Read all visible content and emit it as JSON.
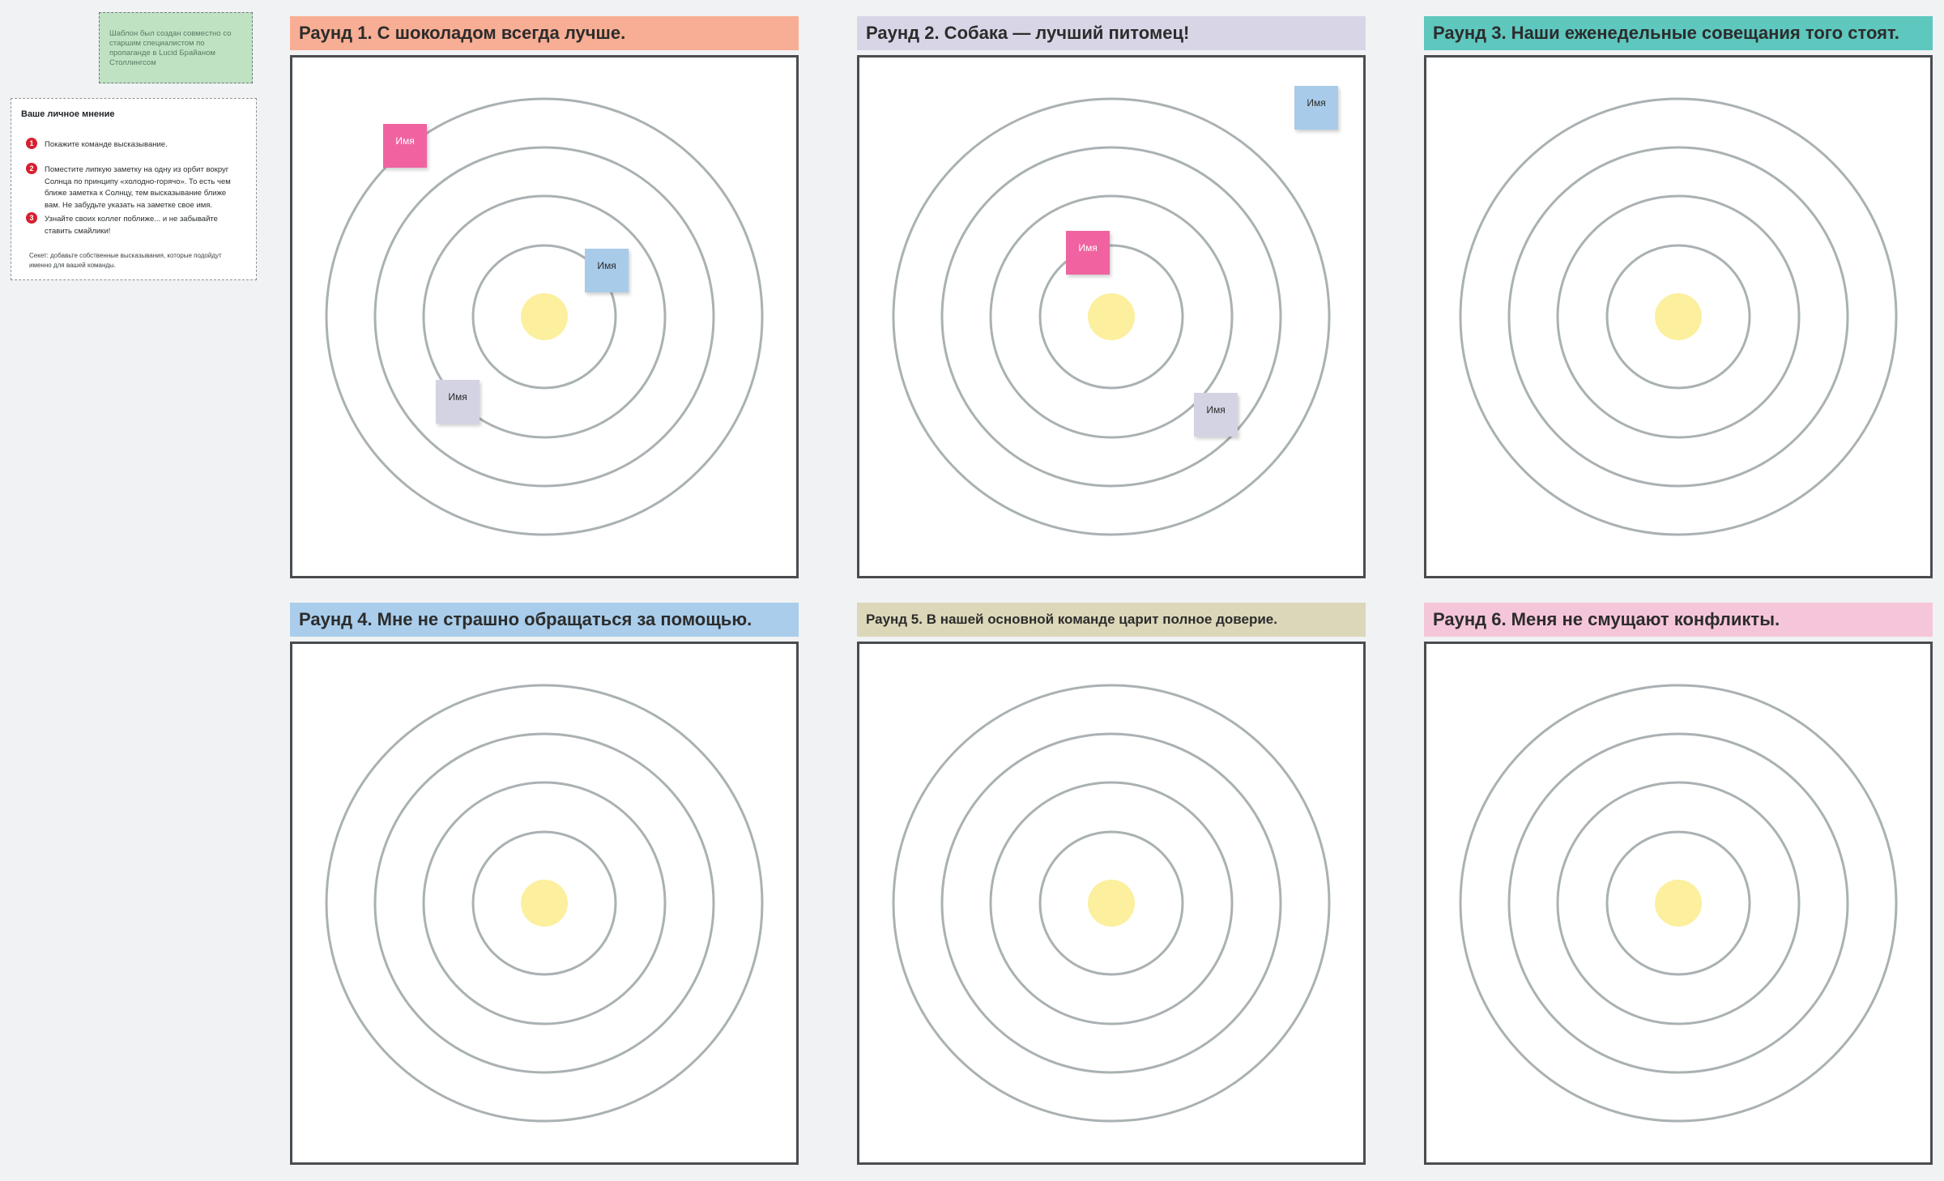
{
  "template_note": {
    "text": "Шаблон был создан совместно со старшим специалистом по пропаганде в Lucid Брайаном Столлингсом"
  },
  "instructions": {
    "title": "Ваше личное мнение",
    "steps": [
      {
        "num": "1",
        "text": "Покажите команде высказывание."
      },
      {
        "num": "2",
        "text": "Поместите липкую заметку на одну из орбит вокруг Солнца по принципу «холодно-горячо». То есть чем ближе заметка к Солнцу, тем высказывание ближе вам. Не забудьте указать на заметке свое имя."
      },
      {
        "num": "3",
        "text": "Узнайте своих коллег поближе... и не забывайте ставить смайлики!"
      }
    ],
    "secret": "Секет: добавьте собственные высказывания, которые подойдут именно для вашей команды."
  },
  "rounds": [
    {
      "title": "Раунд 1. С шоколадом всегда лучше.",
      "header_color": "#f8ae94",
      "stickies": [
        {
          "label": "Имя",
          "color": "#f063a0",
          "text_color": "#ffffff"
        },
        {
          "label": "Имя",
          "color": "#a8cbe9",
          "text_color": "#2b2b2b"
        },
        {
          "label": "Имя",
          "color": "#d4d3e3",
          "text_color": "#2b2b2b"
        }
      ]
    },
    {
      "title": "Раунд 2. Собака — лучший питомец!",
      "header_color": "#d8d6e6",
      "stickies": [
        {
          "label": "Имя",
          "color": "#a8cbe9",
          "text_color": "#2b2b2b"
        },
        {
          "label": "Имя",
          "color": "#f063a0",
          "text_color": "#ffffff"
        },
        {
          "label": "Имя",
          "color": "#d4d3e3",
          "text_color": "#2b2b2b"
        }
      ]
    },
    {
      "title": "Раунд 3. Наши еженедельные совещания того стоят.",
      "header_color": "#5ec7be",
      "stickies": []
    },
    {
      "title": "Раунд 4. Мне не страшно обращаться за помощью.",
      "header_color": "#a9cdeb",
      "stickies": []
    },
    {
      "title": "Раунд 5. В нашей основной команде царит полное доверие.",
      "header_color": "#dcd7b9",
      "stickies": []
    },
    {
      "title": "Раунд 6. Меня не смущают конфликты.",
      "header_color": "#f5c6d9",
      "stickies": []
    }
  ],
  "colors": {
    "sun": "#fcef9e",
    "orbit": "#aab1b3",
    "board_border": "#4a4d50",
    "canvas": "#f1f2f4"
  }
}
